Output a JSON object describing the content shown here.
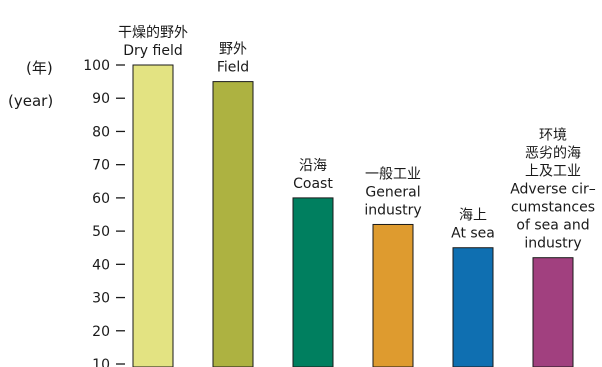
{
  "chart_data": {
    "type": "bar",
    "ylabel_lines": [
      "(年)",
      "(year)"
    ],
    "ylim": [
      10,
      100
    ],
    "yticks": [
      10,
      20,
      30,
      40,
      50,
      60,
      70,
      80,
      90,
      100
    ],
    "grid": false,
    "legend": "none",
    "categories": [
      {
        "label_lines": [
          "干燥的野外",
          "Dry field"
        ],
        "value": 100,
        "color": "#e3e382"
      },
      {
        "label_lines": [
          "野外",
          "Field"
        ],
        "value": 95,
        "color": "#adb241"
      },
      {
        "label_lines": [
          "沿海",
          "Coast"
        ],
        "value": 60,
        "color": "#007f5f"
      },
      {
        "label_lines": [
          "一般工业",
          "General",
          "industry"
        ],
        "value": 52,
        "color": "#de9b2f"
      },
      {
        "label_lines": [
          "海上",
          "At sea"
        ],
        "value": 45,
        "color": "#0f6fb1"
      },
      {
        "label_lines": [
          "环境",
          "恶劣的海",
          "上及工业",
          "Adverse cir–",
          "cumstances",
          "of sea and",
          "industry"
        ],
        "value": 42,
        "color": "#a1407f"
      }
    ]
  }
}
